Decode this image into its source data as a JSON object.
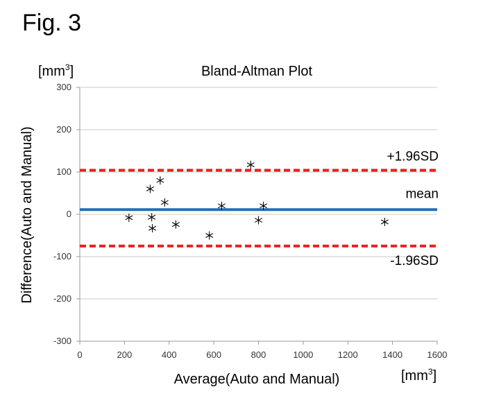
{
  "figure_label": "Fig. 3",
  "chart_data": {
    "type": "scatter",
    "title": "Bland-Altman  Plot",
    "xlabel": "Average(Auto and Manual)",
    "ylabel": "Difference(Auto and Manual)",
    "x_unit": {
      "base": "[mm",
      "exp": "3",
      "close": "]"
    },
    "y_unit": {
      "base": "[mm",
      "exp": "3",
      "close": "]"
    },
    "xlim": [
      0,
      1600
    ],
    "ylim": [
      -300,
      300
    ],
    "x_ticks": [
      0,
      200,
      400,
      600,
      800,
      1000,
      1200,
      1400,
      1600
    ],
    "y_ticks": [
      300,
      200,
      100,
      0,
      -100,
      -200,
      -300
    ],
    "grid": "horizontal",
    "marker": "asterisk",
    "points": [
      {
        "x": 220,
        "y": -8
      },
      {
        "x": 315,
        "y": 60
      },
      {
        "x": 322,
        "y": -7
      },
      {
        "x": 325,
        "y": -33
      },
      {
        "x": 360,
        "y": 80
      },
      {
        "x": 380,
        "y": 28
      },
      {
        "x": 430,
        "y": -24
      },
      {
        "x": 580,
        "y": -50
      },
      {
        "x": 635,
        "y": 20
      },
      {
        "x": 765,
        "y": 117
      },
      {
        "x": 800,
        "y": -14
      },
      {
        "x": 822,
        "y": 20
      },
      {
        "x": 1365,
        "y": -18
      }
    ],
    "reference_lines": [
      {
        "label": "+1.96SD",
        "y": 104,
        "color": "#e8201c",
        "style": "dashed"
      },
      {
        "label": "mean",
        "y": 11,
        "color": "#1f6fba",
        "style": "solid"
      },
      {
        "label": "-1.96SD",
        "y": -75,
        "color": "#e8201c",
        "style": "dashed"
      }
    ]
  }
}
